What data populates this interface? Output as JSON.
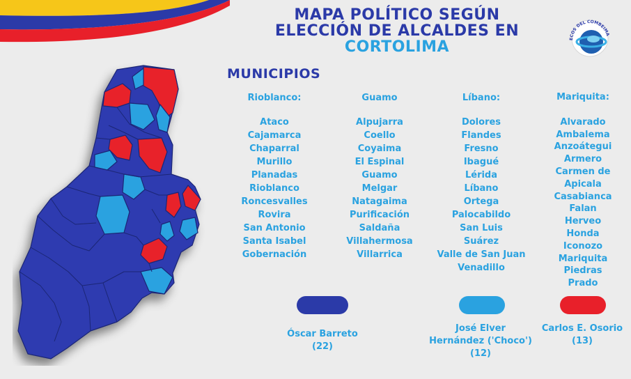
{
  "title": {
    "line1": "MAPA POLÍTICO SEGÚN",
    "line2": "ELECCIÓN DE ALCALDES EN",
    "line3": "CORTOLIMA"
  },
  "logo_text": "ECOS DEL COMBEIMA",
  "municipios_heading": "MUNICIPIOS",
  "colors": {
    "dark_blue": "#2b3aa8",
    "light_blue": "#2aa2e0",
    "red": "#e8202a",
    "background": "#ececec"
  },
  "columns": [
    {
      "header": "Rioblanco:",
      "items": [
        "Ataco",
        "Cajamarca",
        "Chaparral",
        "Murillo",
        "Planadas",
        "Rioblanco",
        "Roncesvalles",
        "Rovira",
        "San Antonio",
        "Santa Isabel",
        "Gobernación"
      ]
    },
    {
      "header": "Guamo",
      "items": [
        "Alpujarra",
        "Coello",
        "Coyaima",
        "El Espinal",
        "Guamo",
        "Melgar",
        "Natagaima",
        "Purificación",
        "Saldaña",
        "Villahermosa",
        "Villarrica"
      ]
    },
    {
      "header": "Líbano:",
      "items": [
        "Dolores",
        "Flandes",
        "Fresno",
        "Ibagué",
        "Lérida",
        "Líbano",
        "Ortega",
        "Palocabildo",
        "San Luis",
        "Suárez",
        "Valle de San Juan",
        "Venadillo"
      ]
    },
    {
      "header": "Mariquita:",
      "items": [
        "Alvarado",
        "Ambalema",
        "Anzoátegui",
        "Armero",
        "Carmen de Apicala",
        "Casabianca",
        "Falan",
        "Herveo",
        "Honda",
        "Iconozo",
        "Mariquita",
        "Piedras",
        "Prado"
      ]
    }
  ],
  "legend": [
    {
      "name": "Óscar Barreto",
      "count": "(22)",
      "color": "#2b3aa8"
    },
    {
      "name_line1": "José Elver",
      "name_line2": "Hernández ('Choco')",
      "count": "(12)",
      "color": "#2aa2e0"
    },
    {
      "name": "Carlos E. Osorio",
      "count": "(13)",
      "color": "#e8202a"
    }
  ]
}
